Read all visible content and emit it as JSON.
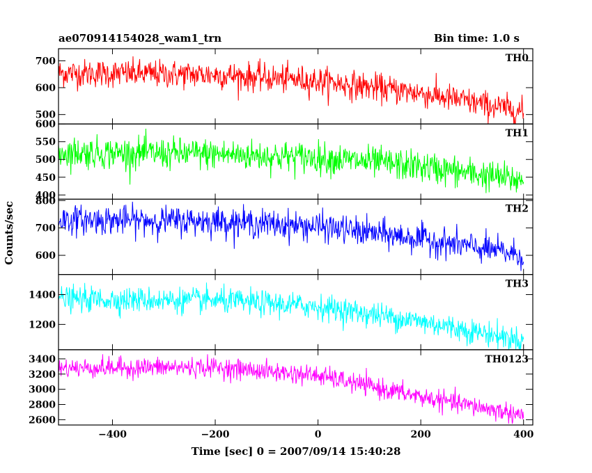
{
  "header": {
    "title": "ae070914154028_wam1_trn",
    "bin_time": "Bin time: 1.0 s"
  },
  "chart_data": {
    "type": "line",
    "title": "ae070914154028_wam1_trn",
    "xlabel": "Time [sec] 0 = 2007/09/14 15:40:28",
    "ylabel": "Counts/sec",
    "xlim": [
      -505,
      418
    ],
    "x_ticks": [
      -400,
      -200,
      0,
      200,
      400
    ],
    "x_tick_labels": [
      "−400",
      "−200",
      "0",
      "200",
      "400"
    ],
    "x_range": [
      -505,
      400
    ],
    "bin_time_s": 1.0,
    "grid": false,
    "panels": [
      {
        "name": "TH0",
        "color": "#ff0000",
        "ylim": [
          465,
          745
        ],
        "y_ticks": [
          500,
          600,
          700
        ],
        "y_tick_labels": [
          "500",
          "600",
          "700"
        ],
        "trend": [
          [
            -505,
            655
          ],
          [
            -200,
            648
          ],
          [
            0,
            625
          ],
          [
            200,
            580
          ],
          [
            400,
            510
          ]
        ],
        "noise": 26
      },
      {
        "name": "TH1",
        "color": "#00ff00",
        "ylim": [
          388,
          600
        ],
        "y_ticks": [
          400,
          450,
          500,
          550,
          600
        ],
        "y_tick_labels": [
          "400",
          "450",
          "500",
          "550",
          "600"
        ],
        "trend": [
          [
            -505,
            520
          ],
          [
            -200,
            515
          ],
          [
            0,
            505
          ],
          [
            200,
            480
          ],
          [
            400,
            440
          ]
        ],
        "noise": 22
      },
      {
        "name": "TH2",
        "color": "#0000ff",
        "ylim": [
          530,
          805
        ],
        "y_ticks": [
          600,
          700,
          800
        ],
        "y_tick_labels": [
          "600",
          "700",
          "800"
        ],
        "trend": [
          [
            -505,
            730
          ],
          [
            -200,
            725
          ],
          [
            0,
            705
          ],
          [
            200,
            660
          ],
          [
            400,
            600
          ]
        ],
        "noise": 26
      },
      {
        "name": "TH3",
        "color": "#00ffff",
        "ylim": [
          1030,
          1535
        ],
        "y_ticks": [
          1200,
          1400
        ],
        "y_tick_labels": [
          "1200",
          "1400"
        ],
        "trend": [
          [
            -505,
            1370
          ],
          [
            -200,
            1360
          ],
          [
            0,
            1320
          ],
          [
            200,
            1220
          ],
          [
            400,
            1090
          ]
        ],
        "noise": 42
      },
      {
        "name": "TH0123",
        "color": "#ff00ff",
        "ylim": [
          2530,
          3520
        ],
        "y_ticks": [
          2600,
          2800,
          3000,
          3200,
          3400
        ],
        "y_tick_labels": [
          "2600",
          "2800",
          "3000",
          "3200",
          "3400"
        ],
        "trend": [
          [
            -505,
            3280
          ],
          [
            -200,
            3290
          ],
          [
            0,
            3180
          ],
          [
            200,
            2900
          ],
          [
            400,
            2660
          ]
        ],
        "noise": 65
      }
    ]
  }
}
